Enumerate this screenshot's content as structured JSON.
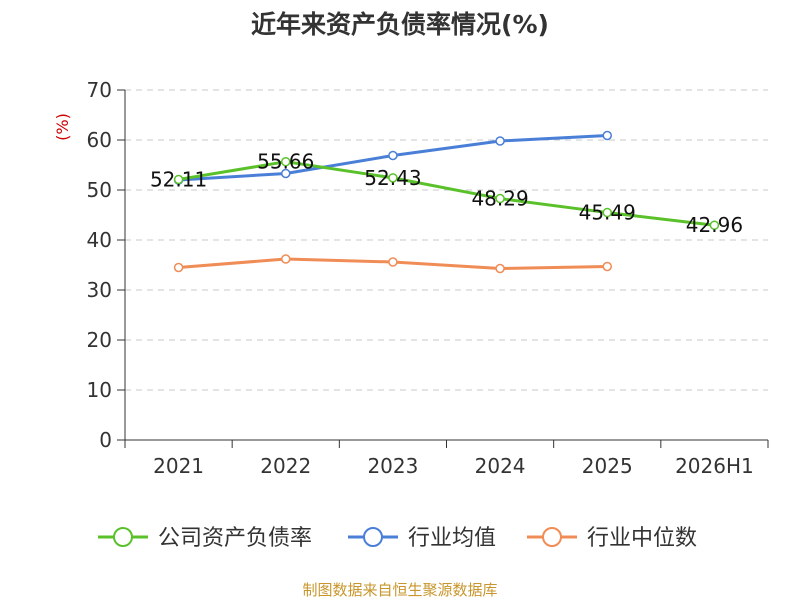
{
  "chart_data": {
    "type": "line",
    "title": "近年来资产负债率情况(%)",
    "ylabel": "(%)",
    "categories": [
      "2021",
      "2022",
      "2023",
      "2024",
      "2025",
      "2026H1"
    ],
    "yticks": [
      "0",
      "10",
      "20",
      "30",
      "40",
      "50",
      "60",
      "70"
    ],
    "ylim": [
      0,
      70
    ],
    "grid": true,
    "legend_position": "bottom",
    "series": [
      {
        "name": "公司资产负债率",
        "color": "#5ac12a",
        "values": [
          52.11,
          55.66,
          52.43,
          48.29,
          45.49,
          42.96
        ],
        "labels": [
          "52.11",
          "55.66",
          "52.43",
          "48.29",
          "45.49",
          "42.96"
        ]
      },
      {
        "name": "行业均值",
        "color": "#4a7fd8",
        "values": [
          52.0,
          53.3,
          56.9,
          59.8,
          60.9,
          null
        ]
      },
      {
        "name": "行业中位数",
        "color": "#f08c55",
        "values": [
          34.5,
          36.2,
          35.6,
          34.3,
          34.7,
          null
        ]
      }
    ]
  },
  "source_text": "制图数据来自恒生聚源数据库"
}
